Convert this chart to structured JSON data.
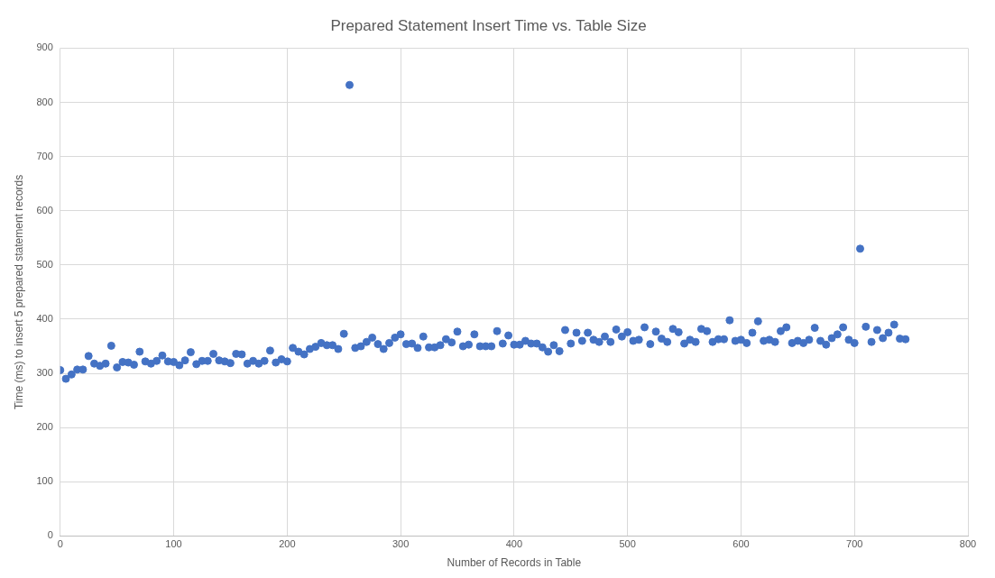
{
  "chart_data": {
    "type": "scatter",
    "title": "Prepared Statement Insert Time vs. Table Size",
    "xlabel": "Number of Records in Table",
    "ylabel": "Time (ms) to insert 5 prepared statement records",
    "x": [
      0,
      5,
      10,
      15,
      20,
      25,
      30,
      35,
      40,
      45,
      50,
      55,
      60,
      65,
      70,
      75,
      80,
      85,
      90,
      95,
      100,
      105,
      110,
      115,
      120,
      125,
      130,
      135,
      140,
      145,
      150,
      155,
      160,
      165,
      170,
      175,
      180,
      185,
      190,
      195,
      200,
      205,
      210,
      215,
      220,
      225,
      230,
      235,
      240,
      245,
      250,
      255,
      260,
      265,
      270,
      275,
      280,
      285,
      290,
      295,
      300,
      305,
      310,
      315,
      320,
      325,
      330,
      335,
      340,
      345,
      350,
      355,
      360,
      365,
      370,
      375,
      380,
      385,
      390,
      395,
      400,
      405,
      410,
      415,
      420,
      425,
      430,
      435,
      440,
      445,
      450,
      455,
      460,
      465,
      470,
      475,
      480,
      485,
      490,
      495,
      500,
      505,
      510,
      515,
      520,
      525,
      530,
      535,
      540,
      545,
      550,
      555,
      560,
      565,
      570,
      575,
      580,
      585,
      590,
      595,
      600,
      605,
      610,
      615,
      620,
      625,
      630,
      635,
      640,
      645,
      650,
      655,
      660,
      665,
      670,
      675,
      680,
      685,
      690,
      695,
      700,
      705,
      710,
      715,
      720,
      725,
      730,
      735,
      740,
      745
    ],
    "series": [
      {
        "color": "#4472c4",
        "values": [
          306,
          290,
          298,
          307,
          307,
          332,
          318,
          314,
          318,
          351,
          311,
          321,
          320,
          316,
          340,
          322,
          318,
          323,
          333,
          322,
          321,
          315,
          324,
          339,
          317,
          323,
          323,
          336,
          324,
          322,
          319,
          336,
          335,
          318,
          323,
          318,
          323,
          342,
          320,
          326,
          322,
          347,
          340,
          335,
          345,
          349,
          356,
          352,
          352,
          345,
          373,
          832,
          347,
          350,
          358,
          366,
          354,
          345,
          356,
          366,
          372,
          354,
          355,
          347,
          368,
          348,
          348,
          352,
          363,
          357,
          377,
          350,
          353,
          372,
          350,
          350,
          350,
          378,
          355,
          370,
          353,
          353,
          360,
          355,
          355,
          348,
          340,
          352,
          341,
          380,
          355,
          375,
          360,
          375,
          362,
          358,
          368,
          358,
          381,
          368,
          376,
          360,
          362,
          385,
          354,
          377,
          364,
          358,
          382,
          376,
          355,
          362,
          358,
          382,
          378,
          358,
          363,
          363,
          398,
          360,
          362,
          356,
          375,
          396,
          360,
          362,
          358,
          378,
          385,
          356,
          360,
          356,
          362,
          384,
          360,
          353,
          365,
          372,
          385,
          362,
          356,
          530,
          386,
          358,
          380,
          365,
          375,
          390,
          364,
          363
        ]
      }
    ],
    "xlim": [
      0,
      800
    ],
    "xticks": [
      0,
      100,
      200,
      300,
      400,
      500,
      600,
      700,
      800
    ],
    "ylim": [
      0,
      900
    ],
    "yticks": [
      0,
      100,
      200,
      300,
      400,
      500,
      600,
      700,
      800,
      900
    ],
    "grid": true,
    "legend": false,
    "marker": "circle"
  }
}
